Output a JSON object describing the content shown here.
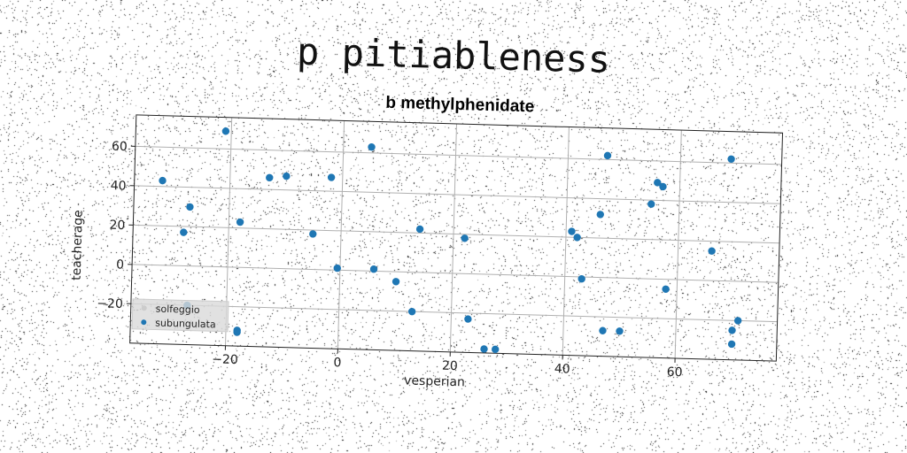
{
  "title": "p pitiableness",
  "chart_data": {
    "type": "scatter",
    "title": "b methylphenidate",
    "xlabel": "vesperian",
    "ylabel": "teacherage",
    "xlim": [
      -37,
      78
    ],
    "ylim": [
      -40,
      76
    ],
    "xticks": [
      -20,
      0,
      20,
      40,
      60
    ],
    "yticks": [
      -20,
      0,
      20,
      40,
      60
    ],
    "xtick_labels": [
      "−20",
      "0",
      "20",
      "40",
      "60"
    ],
    "ytick_labels": [
      "−20",
      "0",
      "20",
      "40",
      "60"
    ],
    "grid": true,
    "legend": {
      "placement": "lower-left",
      "entries": [
        "solfeggio",
        "subungulata"
      ]
    },
    "series": [
      {
        "name": "solfeggio",
        "color": "#cccccc",
        "points": []
      },
      {
        "name": "subungulata",
        "color": "#1f77b4",
        "points": [
          {
            "x": -32,
            "y": 43
          },
          {
            "x": -21,
            "y": 69
          },
          {
            "x": -28,
            "y": 17
          },
          {
            "x": -27,
            "y": 30
          },
          {
            "x": -27,
            "y": -20
          },
          {
            "x": -18,
            "y": 23
          },
          {
            "x": -18,
            "y": -32
          },
          {
            "x": -18,
            "y": -33
          },
          {
            "x": -13,
            "y": 46
          },
          {
            "x": -10,
            "y": 47
          },
          {
            "x": -5,
            "y": 18
          },
          {
            "x": -2,
            "y": 47
          },
          {
            "x": -0.5,
            "y": 1
          },
          {
            "x": 5,
            "y": 63
          },
          {
            "x": 6,
            "y": 1
          },
          {
            "x": 10,
            "y": -5
          },
          {
            "x": 13,
            "y": -20
          },
          {
            "x": 14,
            "y": 22
          },
          {
            "x": 22,
            "y": 18
          },
          {
            "x": 23,
            "y": -23
          },
          {
            "x": 26,
            "y": -38
          },
          {
            "x": 28,
            "y": -38
          },
          {
            "x": 41,
            "y": 23
          },
          {
            "x": 42,
            "y": 20
          },
          {
            "x": 43,
            "y": -1
          },
          {
            "x": 46,
            "y": 32
          },
          {
            "x": 47,
            "y": 62
          },
          {
            "x": 47,
            "y": -27
          },
          {
            "x": 50,
            "y": -27
          },
          {
            "x": 55,
            "y": 38
          },
          {
            "x": 56,
            "y": 49
          },
          {
            "x": 57,
            "y": 47
          },
          {
            "x": 58,
            "y": -5
          },
          {
            "x": 66,
            "y": 15
          },
          {
            "x": 69,
            "y": 62
          },
          {
            "x": 70,
            "y": -25
          },
          {
            "x": 70,
            "y": -32
          },
          {
            "x": 71,
            "y": -20
          }
        ]
      }
    ]
  }
}
